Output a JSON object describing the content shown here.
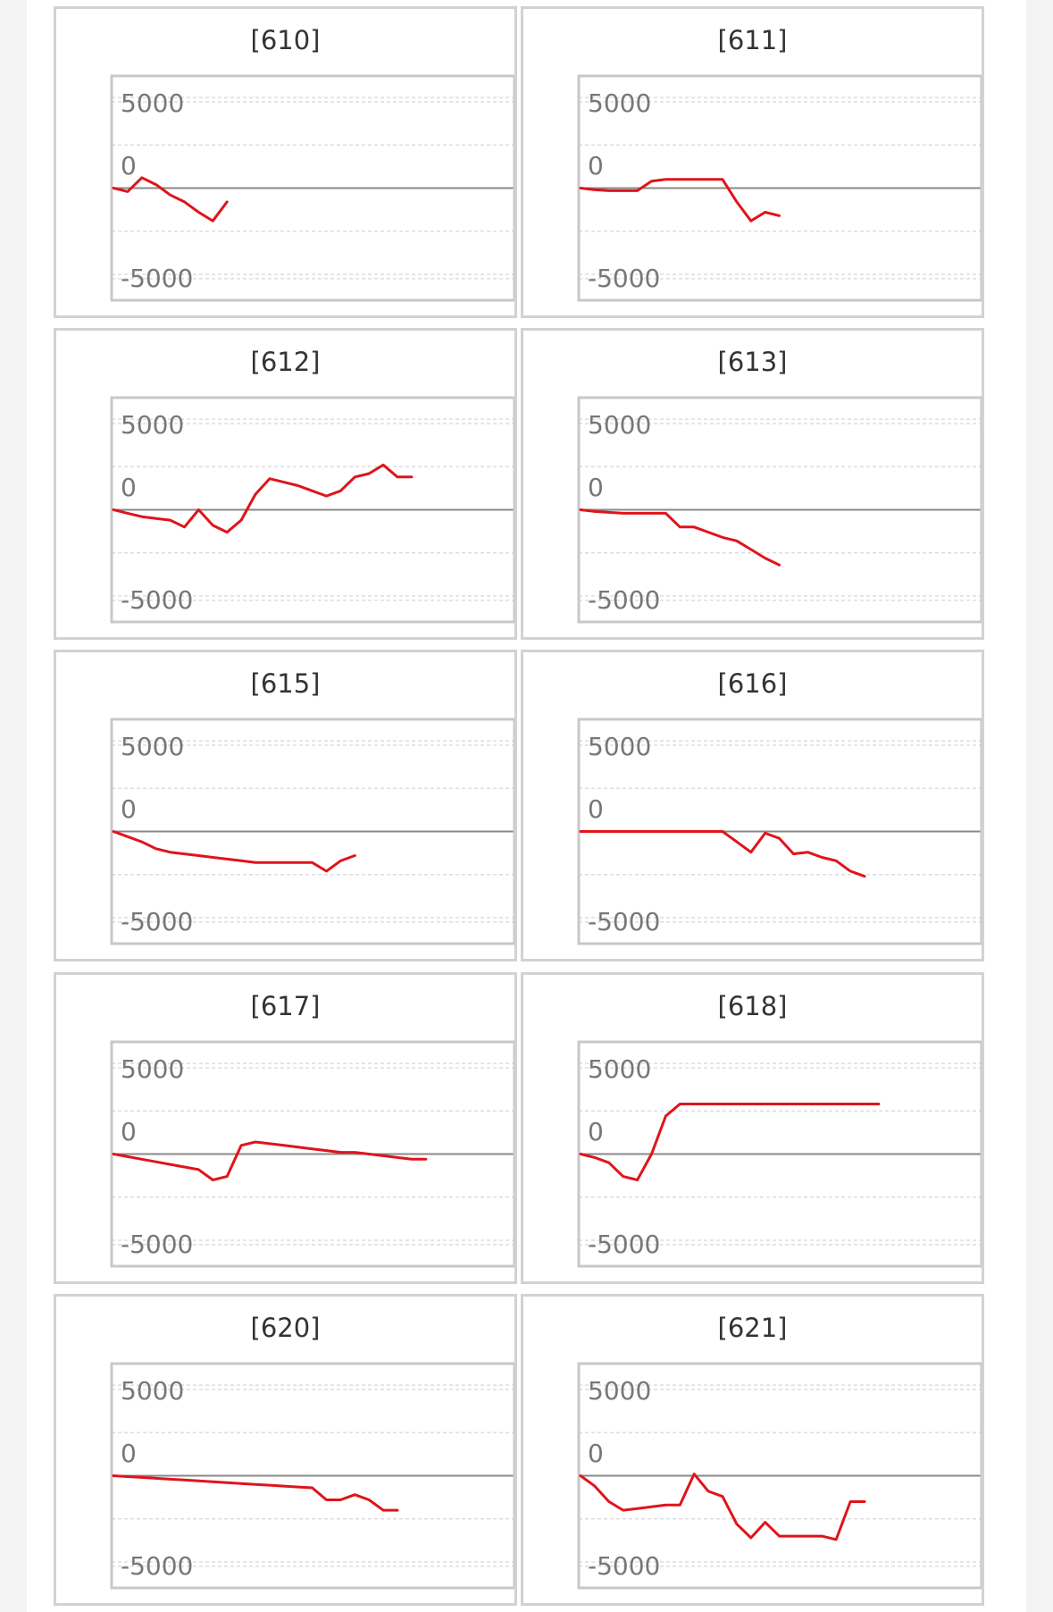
{
  "colors": {
    "line": "#e0141b",
    "zero_line": "#888888",
    "grid": "#dddddd",
    "frame": "#c8c8c8",
    "card_border": "#d2d2d2"
  },
  "chart_data": [
    {
      "type": "line",
      "title": "[610]",
      "ylim": [
        -6500,
        6500
      ],
      "yticks": [
        "5000",
        "0",
        "-5000"
      ],
      "grid": true,
      "series": [
        {
          "x": [
            0,
            1,
            2,
            3,
            4,
            5,
            6,
            7,
            8,
            9
          ],
          "y": [
            0,
            -200,
            600,
            200,
            -400,
            -800,
            -1400,
            -1900,
            -800,
            null
          ]
        }
      ]
    },
    {
      "type": "line",
      "title": "[611]",
      "ylim": [
        -6500,
        6500
      ],
      "yticks": [
        "5000",
        "0",
        "-5000"
      ],
      "grid": true,
      "series": [
        {
          "x": [
            0,
            1,
            2,
            3,
            4,
            5,
            6,
            7,
            8,
            9,
            10,
            11,
            12,
            13,
            14,
            15
          ],
          "y": [
            0,
            -100,
            -150,
            -150,
            -150,
            400,
            500,
            500,
            500,
            500,
            500,
            -800,
            -1900,
            -1400,
            -1600,
            null
          ]
        }
      ]
    },
    {
      "type": "line",
      "title": "[612]",
      "ylim": [
        -6500,
        6500
      ],
      "yticks": [
        "5000",
        "0",
        "-5000"
      ],
      "grid": true,
      "series": [
        {
          "x": [
            0,
            1,
            2,
            3,
            4,
            5,
            6,
            7,
            8,
            9,
            10,
            11,
            12,
            13,
            14,
            15,
            16,
            17,
            18,
            19,
            20,
            21,
            22,
            23,
            24
          ],
          "y": [
            0,
            -200,
            -400,
            -500,
            -600,
            -1000,
            0,
            -900,
            -1300,
            -600,
            900,
            1800,
            1600,
            1400,
            1100,
            800,
            1100,
            1900,
            2100,
            2600,
            1900,
            1900,
            null,
            null,
            null
          ]
        }
      ]
    },
    {
      "type": "line",
      "title": "[613]",
      "ylim": [
        -6500,
        6500
      ],
      "yticks": [
        "5000",
        "0",
        "-5000"
      ],
      "grid": true,
      "series": [
        {
          "x": [
            0,
            1,
            2,
            3,
            4,
            5,
            6,
            7,
            8,
            9,
            10,
            11,
            12,
            13,
            14,
            15
          ],
          "y": [
            0,
            -100,
            -150,
            -200,
            -200,
            -200,
            -200,
            -1000,
            -1000,
            -1300,
            -1600,
            -1800,
            -2300,
            -2800,
            -3200,
            null
          ]
        }
      ]
    },
    {
      "type": "line",
      "title": "[615]",
      "ylim": [
        -6500,
        6500
      ],
      "yticks": [
        "5000",
        "0",
        "-5000"
      ],
      "grid": true,
      "series": [
        {
          "x": [
            0,
            1,
            2,
            3,
            4,
            5,
            6,
            7,
            8,
            9,
            10,
            11,
            12,
            13,
            14,
            15,
            16,
            17,
            18,
            19
          ],
          "y": [
            0,
            -300,
            -600,
            -1000,
            -1200,
            -1300,
            -1400,
            -1500,
            -1600,
            -1700,
            -1800,
            -1800,
            -1800,
            -1800,
            -1800,
            -2300,
            -1700,
            -1400,
            null,
            null
          ]
        }
      ]
    },
    {
      "type": "line",
      "title": "[616]",
      "ylim": [
        -6500,
        6500
      ],
      "yticks": [
        "5000",
        "0",
        "-5000"
      ],
      "grid": true,
      "series": [
        {
          "x": [
            0,
            1,
            2,
            3,
            4,
            5,
            6,
            7,
            8,
            9,
            10,
            11,
            12,
            13,
            14,
            15,
            16,
            17,
            18,
            19,
            20,
            21
          ],
          "y": [
            0,
            0,
            0,
            0,
            0,
            0,
            0,
            0,
            0,
            0,
            0,
            -600,
            -1200,
            -100,
            -400,
            -1300,
            -1200,
            -1500,
            -1700,
            -2300,
            -2600,
            null
          ]
        }
      ]
    },
    {
      "type": "line",
      "title": "[617]",
      "ylim": [
        -6500,
        6500
      ],
      "yticks": [
        "5000",
        "0",
        "-5000"
      ],
      "grid": true,
      "series": [
        {
          "x": [
            0,
            1,
            2,
            3,
            4,
            5,
            6,
            7,
            8,
            9,
            10,
            11,
            12,
            13,
            14,
            15,
            16,
            17,
            18,
            19,
            20,
            21,
            22,
            23,
            24
          ],
          "y": [
            0,
            -150,
            -300,
            -450,
            -600,
            -750,
            -900,
            -1500,
            -1300,
            500,
            700,
            600,
            500,
            400,
            300,
            200,
            100,
            100,
            0,
            -100,
            -200,
            -300,
            -300,
            null,
            null
          ]
        }
      ]
    },
    {
      "type": "line",
      "title": "[618]",
      "ylim": [
        -6500,
        6500
      ],
      "yticks": [
        "5000",
        "0",
        "-5000"
      ],
      "grid": true,
      "series": [
        {
          "x": [
            0,
            1,
            2,
            3,
            4,
            5,
            6,
            7,
            8,
            9,
            10,
            11,
            12,
            13,
            14,
            15,
            16,
            17,
            18,
            19,
            20,
            21,
            22
          ],
          "y": [
            0,
            -200,
            -500,
            -1300,
            -1500,
            0,
            2200,
            2900,
            2900,
            2900,
            2900,
            2900,
            2900,
            2900,
            2900,
            2900,
            2900,
            2900,
            2900,
            2900,
            2900,
            2900,
            null
          ]
        }
      ]
    },
    {
      "type": "line",
      "title": "[620]",
      "ylim": [
        -6500,
        6500
      ],
      "yticks": [
        "5000",
        "0",
        "-5000"
      ],
      "grid": true,
      "series": [
        {
          "x": [
            0,
            1,
            2,
            3,
            4,
            5,
            6,
            7,
            8,
            9,
            10,
            11,
            12,
            13,
            14,
            15,
            16,
            17,
            18,
            19,
            20,
            21
          ],
          "y": [
            0,
            -50,
            -100,
            -150,
            -200,
            -250,
            -300,
            -350,
            -400,
            -450,
            -500,
            -550,
            -600,
            -650,
            -700,
            -1400,
            -1400,
            -1100,
            -1400,
            -2000,
            -2000,
            null
          ]
        }
      ]
    },
    {
      "type": "line",
      "title": "[621]",
      "ylim": [
        -6500,
        6500
      ],
      "yticks": [
        "5000",
        "0",
        "-5000"
      ],
      "grid": true,
      "series": [
        {
          "x": [
            0,
            1,
            2,
            3,
            4,
            5,
            6,
            7,
            8,
            9,
            10,
            11,
            12,
            13,
            14,
            15,
            16,
            17,
            18,
            19,
            20,
            21
          ],
          "y": [
            0,
            -600,
            -1500,
            -2000,
            -1900,
            -1800,
            -1700,
            -1700,
            100,
            -900,
            -1200,
            -2800,
            -3600,
            -2700,
            -3500,
            -3500,
            -3500,
            -3500,
            -3700,
            -1500,
            -1500,
            null
          ]
        }
      ]
    }
  ]
}
